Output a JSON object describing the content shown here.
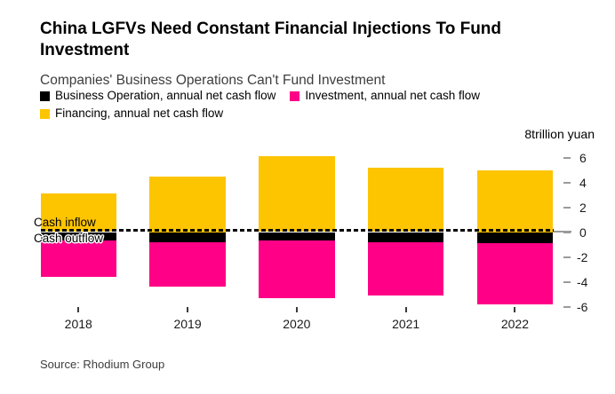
{
  "header": {
    "title": "China LGFVs Need Constant Financial Injections To Fund Investment",
    "subtitle": "Companies' Business Operations Can't Fund Investment"
  },
  "legend": {
    "position": "top",
    "items": [
      {
        "label": "Business Operation, annual net cash flow",
        "color": "#000000"
      },
      {
        "label": "Investment, annual net cash flow",
        "color": "#ff0087"
      },
      {
        "label": "Financing, annual net cash flow",
        "color": "#fdc400"
      }
    ]
  },
  "axis": {
    "unit_label": "8trillion yuan",
    "y_ticks": [
      6,
      4,
      2,
      0,
      -2,
      -4,
      -6
    ]
  },
  "annotations": {
    "cash_inflow": "Cash inflow",
    "cash_outflow": "Cash outflow"
  },
  "source": "Source: Rhodium Group",
  "chart_data": {
    "type": "bar",
    "stacked": true,
    "title": "China LGFVs Need Constant Financial Injections To Fund Investment",
    "subtitle": "Companies' Business Operations Can't Fund Investment",
    "xlabel": "",
    "ylabel": "8trillion yuan",
    "ylim": [
      -6.5,
      8
    ],
    "grid": false,
    "zero_line": "dashed",
    "legend_position": "top",
    "categories": [
      "2018",
      "2019",
      "2020",
      "2021",
      "2022"
    ],
    "series": [
      {
        "name": "Business Operation, annual net cash flow",
        "color": "#000000",
        "values": [
          -0.7,
          -0.8,
          -0.7,
          -0.8,
          -0.9
        ]
      },
      {
        "name": "Investment, annual net cash flow",
        "color": "#ff0087",
        "values": [
          -2.9,
          -3.6,
          -4.6,
          -4.3,
          -4.9
        ]
      },
      {
        "name": "Financing, annual net cash flow",
        "color": "#fdc400",
        "values": [
          3.1,
          4.5,
          6.1,
          5.2,
          5.0
        ]
      }
    ]
  }
}
